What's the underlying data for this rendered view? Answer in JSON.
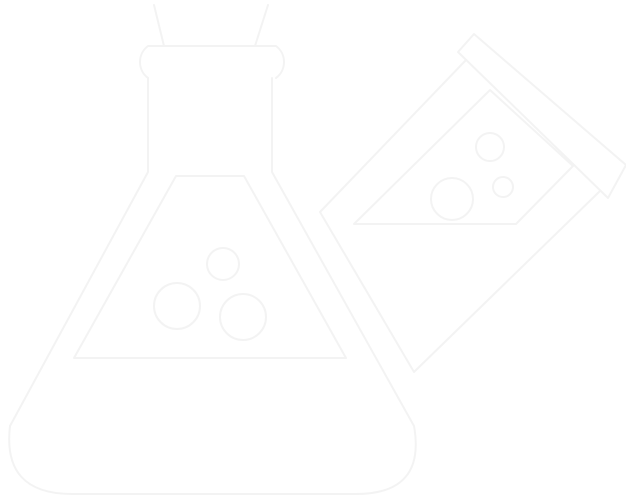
{
  "scene": {
    "icons": [
      "erlenmeyer-flask-icon",
      "test-tube-icon"
    ],
    "bubble_counts": {
      "erlenmeyer-flask-icon": 3,
      "test-tube-icon": 3
    },
    "colors": {
      "background": "#ffffff",
      "line": "#f3f3f3"
    }
  }
}
